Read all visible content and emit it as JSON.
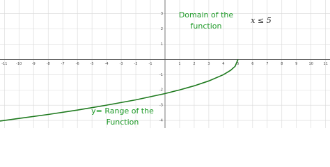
{
  "chart_data": {
    "type": "line",
    "x": [
      -11.3,
      -10,
      -8,
      -6,
      -4,
      -2,
      0,
      1,
      2,
      3,
      4,
      4.5,
      4.8,
      5
    ],
    "series": [
      {
        "color": "#1e7a1e",
        "values": [
          -4.04,
          -3.87,
          -3.61,
          -3.32,
          -3.0,
          -2.65,
          -2.24,
          -2.0,
          -1.73,
          -1.41,
          -1.0,
          -0.71,
          -0.45,
          0
        ]
      }
    ],
    "xlim": [
      -11.3,
      11.3
    ],
    "ylim": [
      -4.5,
      3.9
    ],
    "xticks": [
      -11,
      -10,
      -9,
      -8,
      -7,
      -6,
      -5,
      -4,
      -3,
      -2,
      -1,
      1,
      2,
      3,
      4,
      5,
      6,
      7,
      8,
      9,
      10,
      11
    ],
    "yticks": [
      -4,
      -3,
      -2,
      -1,
      1,
      2,
      3
    ],
    "grid": true,
    "annotations": [
      "Domain of the",
      "function",
      "x ≤ 5",
      "y= Range of the",
      "Function"
    ]
  }
}
